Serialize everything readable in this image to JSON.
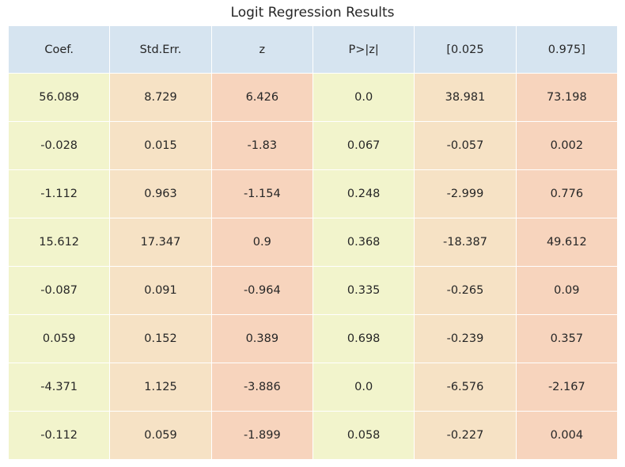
{
  "chart_data": {
    "type": "table",
    "title": "Logit Regression Results",
    "columns": [
      "Coef.",
      "Std.Err.",
      "z",
      "P>|z|",
      "[0.025",
      "0.975]"
    ],
    "rows": [
      [
        "56.089",
        "8.729",
        "6.426",
        "0.0",
        "38.981",
        "73.198"
      ],
      [
        "-0.028",
        "0.015",
        "-1.83",
        "0.067",
        "-0.057",
        "0.002"
      ],
      [
        "-1.112",
        "0.963",
        "-1.154",
        "0.248",
        "-2.999",
        "0.776"
      ],
      [
        "15.612",
        "17.347",
        "0.9",
        "0.368",
        "-18.387",
        "49.612"
      ],
      [
        "-0.087",
        "0.091",
        "-0.964",
        "0.335",
        "-0.265",
        "0.09"
      ],
      [
        "0.059",
        "0.152",
        "0.389",
        "0.698",
        "-0.239",
        "0.357"
      ],
      [
        "-4.371",
        "1.125",
        "-3.886",
        "0.0",
        "-6.576",
        "-2.167"
      ],
      [
        "-0.112",
        "0.059",
        "-1.899",
        "0.058",
        "-0.227",
        "0.004"
      ]
    ],
    "colors": {
      "header": "#d6e4f0",
      "column_fills": [
        "#f2f4cc",
        "#f6e2c5",
        "#f7d4bd",
        "#f2f4cc",
        "#f6e2c5",
        "#f7d4bd"
      ],
      "grid": "#ffffff"
    }
  }
}
